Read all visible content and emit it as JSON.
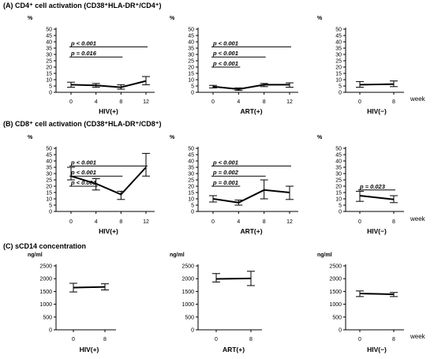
{
  "sections": [
    {
      "title": "(A) CD4⁺ cell activation (CD38⁺HLA-DR⁺/CD4⁺)"
    },
    {
      "title": "(B) CD8⁺ cell activation (CD38⁺HLA-DR⁺/CD8⁺)"
    },
    {
      "title": "(C) sCD14 concentration"
    }
  ],
  "week_label": "week",
  "chart_data": [
    {
      "type": "line",
      "row": 0,
      "col": 0,
      "ylabel": "%",
      "xlabel": "HIV(+)",
      "ylim": [
        0,
        50
      ],
      "yticks": [
        0,
        5,
        10,
        15,
        20,
        25,
        30,
        35,
        40,
        45,
        50
      ],
      "x": [
        0,
        4,
        8,
        12
      ],
      "y": [
        6,
        5.5,
        4,
        9
      ],
      "err_low": [
        4,
        4,
        2.5,
        6
      ],
      "err_high": [
        8,
        7,
        6,
        12.5
      ],
      "pvalues": [
        {
          "label": "p < 0.001",
          "from": 0,
          "to": 12,
          "level": 0
        },
        {
          "label": "p = 0.016",
          "from": 0,
          "to": 8,
          "level": 1
        }
      ]
    },
    {
      "type": "line",
      "row": 0,
      "col": 1,
      "ylabel": "%",
      "xlabel": "ART(+)",
      "ylim": [
        0,
        50
      ],
      "yticks": [
        0,
        5,
        10,
        15,
        20,
        25,
        30,
        35,
        40,
        45,
        50
      ],
      "x": [
        0,
        4,
        8,
        12
      ],
      "y": [
        4.5,
        2.5,
        6,
        6
      ],
      "err_low": [
        3.5,
        1.5,
        4.5,
        4
      ],
      "err_high": [
        5.5,
        3.5,
        7,
        7.5
      ],
      "pvalues": [
        {
          "label": "p < 0.001",
          "from": 0,
          "to": 12,
          "level": 0
        },
        {
          "label": "p < 0.001",
          "from": 0,
          "to": 8,
          "level": 1
        },
        {
          "label": "p < 0.001",
          "from": 0,
          "to": 4,
          "level": 2
        }
      ]
    },
    {
      "type": "line",
      "row": 0,
      "col": 2,
      "ylabel": "%",
      "xlabel": "HIV(−)",
      "ylim": [
        0,
        50
      ],
      "yticks": [
        0,
        5,
        10,
        15,
        20,
        25,
        30,
        35,
        40,
        45,
        50
      ],
      "x": [
        0,
        8
      ],
      "y": [
        6,
        6.5
      ],
      "err_low": [
        4,
        4.5
      ],
      "err_high": [
        8.5,
        9
      ],
      "pvalues": []
    },
    {
      "type": "line",
      "row": 1,
      "col": 0,
      "ylabel": "%",
      "xlabel": "HIV(+)",
      "ylim": [
        0,
        50
      ],
      "yticks": [
        0,
        5,
        10,
        15,
        20,
        25,
        30,
        35,
        40,
        45,
        50
      ],
      "x": [
        0,
        4,
        8,
        12
      ],
      "y": [
        28,
        22,
        13.5,
        35
      ],
      "err_low": [
        25,
        17,
        9.5,
        28
      ],
      "err_high": [
        35,
        26,
        16,
        46
      ],
      "pvalues": [
        {
          "label": "p < 0.001",
          "from": 0,
          "to": 12,
          "level": 0
        },
        {
          "label": "p < 0.001",
          "from": 0,
          "to": 8,
          "level": 1
        },
        {
          "label": "p < 0.001",
          "from": 0,
          "to": 4,
          "level": 2
        }
      ]
    },
    {
      "type": "line",
      "row": 1,
      "col": 1,
      "ylabel": "%",
      "xlabel": "ART(+)",
      "ylim": [
        0,
        50
      ],
      "yticks": [
        0,
        5,
        10,
        15,
        20,
        25,
        30,
        35,
        40,
        45,
        50
      ],
      "x": [
        0,
        4,
        8,
        12
      ],
      "y": [
        10,
        7,
        17,
        15
      ],
      "err_low": [
        7.5,
        5,
        10,
        9.5
      ],
      "err_high": [
        12.5,
        9,
        25,
        20
      ],
      "pvalues": [
        {
          "label": "p < 0.001",
          "from": 0,
          "to": 12,
          "level": 0
        },
        {
          "label": "p = 0.002",
          "from": 0,
          "to": 8,
          "level": 1
        },
        {
          "label": "p = 0.001",
          "from": 0,
          "to": 4,
          "level": 2
        }
      ]
    },
    {
      "type": "line",
      "row": 1,
      "col": 2,
      "ylabel": "%",
      "xlabel": "HIV(−)",
      "ylim": [
        0,
        50
      ],
      "yticks": [
        0,
        5,
        10,
        15,
        20,
        25,
        30,
        35,
        40,
        45,
        50
      ],
      "x": [
        0,
        8
      ],
      "y": [
        12.5,
        9.5
      ],
      "err_low": [
        8,
        7
      ],
      "err_high": [
        16,
        12.5
      ],
      "pvalues": [
        {
          "label": "p = 0.023",
          "from": 0,
          "to": 8,
          "level": 0
        }
      ]
    },
    {
      "type": "line",
      "row": 2,
      "col": 0,
      "ylabel": "ng/ml",
      "xlabel": "HIV(+)",
      "ylim": [
        0,
        2500
      ],
      "yticks": [
        0,
        500,
        1000,
        1500,
        2000,
        2500
      ],
      "x": [
        0,
        8
      ],
      "y": [
        1650,
        1680
      ],
      "err_low": [
        1480,
        1560
      ],
      "err_high": [
        1820,
        1800
      ],
      "pvalues": []
    },
    {
      "type": "line",
      "row": 2,
      "col": 1,
      "ylabel": "ng/ml",
      "xlabel": "ART(+)",
      "ylim": [
        0,
        2500
      ],
      "yticks": [
        0,
        500,
        1000,
        1500,
        2000,
        2500
      ],
      "x": [
        0,
        8
      ],
      "y": [
        1990,
        2010
      ],
      "err_low": [
        1870,
        1730
      ],
      "err_high": [
        2200,
        2290
      ],
      "pvalues": []
    },
    {
      "type": "line",
      "row": 2,
      "col": 2,
      "ylabel": "ng/ml",
      "xlabel": "HIV(−)",
      "ylim": [
        0,
        2500
      ],
      "yticks": [
        0,
        500,
        1000,
        1500,
        2000,
        2500
      ],
      "x": [
        0,
        8
      ],
      "y": [
        1420,
        1390
      ],
      "err_low": [
        1300,
        1300
      ],
      "err_high": [
        1520,
        1460
      ],
      "pvalues": []
    }
  ]
}
